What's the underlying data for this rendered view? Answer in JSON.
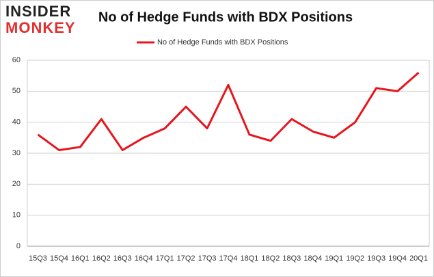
{
  "logo": [
    "INSIDER",
    "MONKEY"
  ],
  "chart_data": {
    "type": "line",
    "title": "No of Hedge Funds with BDX Positions",
    "categories": [
      "15Q3",
      "15Q4",
      "16Q1",
      "16Q2",
      "16Q3",
      "16Q4",
      "17Q1",
      "17Q2",
      "17Q3",
      "17Q4",
      "18Q1",
      "18Q2",
      "18Q3",
      "18Q4",
      "19Q1",
      "19Q2",
      "19Q3",
      "19Q4",
      "20Q1"
    ],
    "series": [
      {
        "name": "No of Hedge Funds with BDX Positions",
        "color": "#e8141c",
        "values": [
          36,
          31,
          32,
          41,
          31,
          35,
          38,
          45,
          38,
          52,
          36,
          34,
          41,
          37,
          35,
          40,
          51,
          50,
          56
        ]
      }
    ],
    "ylim": [
      0,
      60
    ],
    "yticks": [
      0,
      10,
      20,
      30,
      40,
      50,
      60
    ],
    "grid": true,
    "legend": "top"
  }
}
